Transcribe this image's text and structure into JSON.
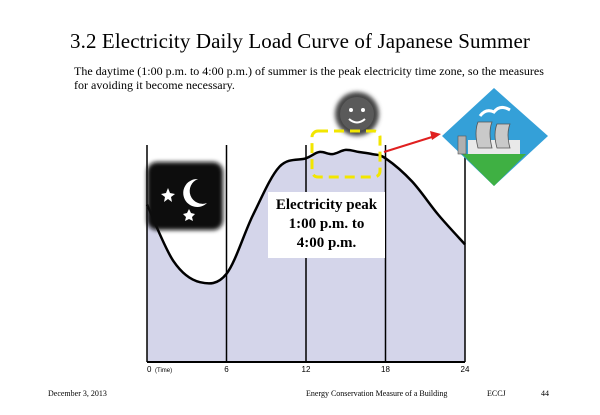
{
  "slide": {
    "title": "3.2  Electricity Daily Load Curve of Japanese Summer",
    "subtitle": "The daytime (1:00 p.m. to 4:00 p.m.) of summer is the peak electricity time zone, so the measures for avoiding it become necessary.",
    "peak_label": {
      "line1": "Electricity peak",
      "line2": "1:00 p.m. to",
      "line3": "4:00 p.m."
    },
    "footer": {
      "date": "December 3, 2013",
      "center": "Energy Conservation Measure of a Building",
      "org": "ECCJ",
      "page": "44"
    },
    "icons": [
      "moon-stars-icon",
      "sun-icon",
      "power-plant-icon",
      "peak-arrow-icon"
    ],
    "colors": {
      "fill": "#d4d5ea",
      "curve": "#000000",
      "highlight": "#f2e600",
      "arrow": "#e02020"
    }
  },
  "chart_data": {
    "type": "area",
    "x": [
      0,
      2,
      4,
      6,
      8,
      10,
      12,
      13,
      14,
      15,
      16,
      17,
      18,
      20,
      22,
      24
    ],
    "values": [
      75,
      48,
      38,
      42,
      70,
      93,
      97,
      100,
      99,
      101,
      100,
      99,
      97,
      86,
      70,
      56
    ],
    "xlim": [
      0,
      24
    ],
    "ylim": [
      0,
      120
    ],
    "x_ticks": [
      0,
      6,
      12,
      18,
      24
    ],
    "x_tick_labels": [
      "0",
      "6",
      "12",
      "18",
      "24"
    ],
    "x_unit_label": "(Time)",
    "highlight_range": [
      13,
      16
    ],
    "grid": "vertical lines at ticks"
  }
}
